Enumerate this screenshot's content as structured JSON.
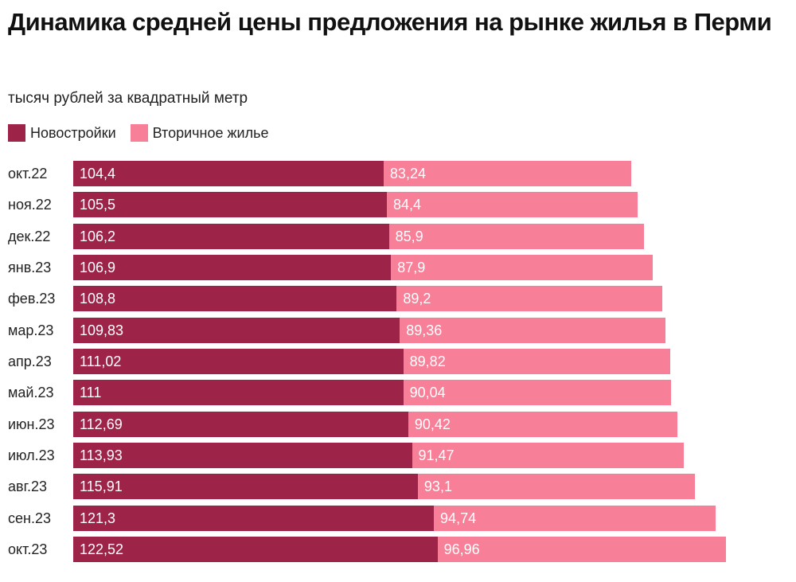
{
  "chart_data": {
    "type": "bar",
    "orientation": "horizontal",
    "stacked": true,
    "title": "Динамика средней цены предложения на рынке жилья в Перми",
    "subtitle": "тысяч рублей за квадратный метр",
    "legend_placement": "top-left",
    "grid": false,
    "xlim": [
      0,
      230
    ],
    "categories": [
      "окт.22",
      "ноя.22",
      "дек.22",
      "янв.23",
      "фев.23",
      "мар.23",
      "апр.23",
      "май.23",
      "июн.23",
      "июл.23",
      "авг.23",
      "сен.23",
      "окт.23"
    ],
    "series": [
      {
        "name": "Новостройки",
        "color": "#9e2349",
        "values": [
          "104,4",
          "105,5",
          "106,2",
          "106,9",
          "108,8",
          "109,83",
          "111,02",
          "111",
          "112,69",
          "113,93",
          "115,91",
          "121,3",
          "122,52"
        ]
      },
      {
        "name": "Вторичное жилье",
        "color": "#f77f98",
        "values": [
          "83,24",
          "84,4",
          "85,9",
          "87,9",
          "89,2",
          "89,36",
          "89,82",
          "90,04",
          "90,42",
          "91,47",
          "93,1",
          "94,74",
          "96,96"
        ]
      }
    ]
  }
}
